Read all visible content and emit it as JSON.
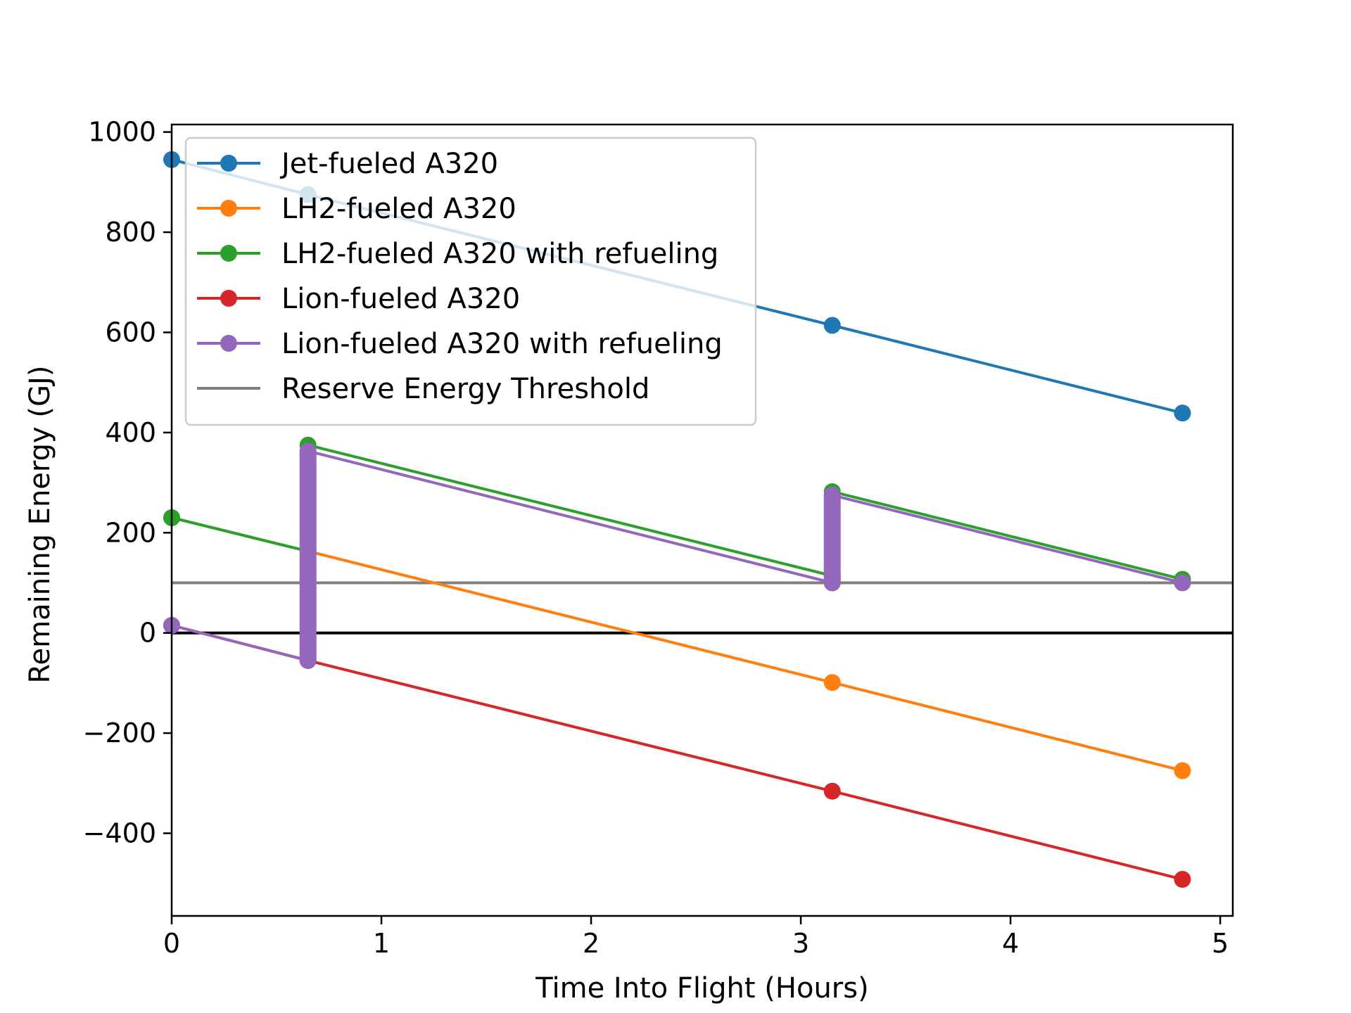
{
  "chart_data": {
    "type": "line",
    "xlabel": "Time Into Flight (Hours)",
    "ylabel": "Remaining Energy (GJ)",
    "xlim": [
      0,
      5.06
    ],
    "ylim": [
      -565,
      1015
    ],
    "x_ticks": [
      0,
      1,
      2,
      3,
      4,
      5
    ],
    "x_tick_labels": [
      "0",
      "1",
      "2",
      "3",
      "4",
      "5"
    ],
    "y_ticks": [
      -400,
      -200,
      0,
      200,
      400,
      600,
      800,
      1000
    ],
    "y_tick_labels": [
      "−400",
      "−200",
      "0",
      "200",
      "400",
      "600",
      "800",
      "1000"
    ],
    "grid": false,
    "legend_position": "top-left",
    "zero_line": {
      "y": 0,
      "color": "#000000"
    },
    "series": [
      {
        "name": "Jet-fueled A320",
        "color": "#1f77b4",
        "marker": true,
        "points": [
          [
            0,
            945
          ],
          [
            0.65,
            875
          ],
          [
            3.15,
            614
          ],
          [
            4.82,
            439
          ]
        ]
      },
      {
        "name": "LH2-fueled A320",
        "color": "#ff7f0e",
        "marker": true,
        "points": [
          [
            0,
            230
          ],
          [
            0.65,
            163
          ],
          [
            3.15,
            -99
          ],
          [
            4.82,
            -275
          ]
        ]
      },
      {
        "name": "LH2-fueled A320 with refueling",
        "color": "#2ca02c",
        "marker": true,
        "points": [
          [
            0,
            230
          ],
          [
            0.65,
            163
          ],
          [
            0.65,
            375
          ],
          [
            3.15,
            114
          ],
          [
            3.15,
            282
          ],
          [
            4.82,
            107
          ]
        ]
      },
      {
        "name": "Lion-fueled A320",
        "color": "#d62728",
        "marker": true,
        "points": [
          [
            0,
            15
          ],
          [
            0.65,
            -55
          ],
          [
            3.15,
            -316
          ],
          [
            4.82,
            -492
          ]
        ]
      },
      {
        "name": "Lion-fueled A320 with refueling",
        "color": "#9467bd",
        "marker": true,
        "points": [
          [
            0,
            15
          ],
          [
            0.65,
            -55
          ],
          [
            0.65,
            363
          ],
          [
            3.15,
            100
          ],
          [
            3.15,
            275
          ],
          [
            4.82,
            100
          ]
        ],
        "refuel_bars": [
          {
            "x": 0.65,
            "from": -55,
            "to": 363
          },
          {
            "x": 3.15,
            "from": 100,
            "to": 275
          }
        ]
      },
      {
        "name": "Reserve Energy Threshold",
        "color": "#7f7f7f",
        "marker": false,
        "hline": 100
      }
    ]
  }
}
